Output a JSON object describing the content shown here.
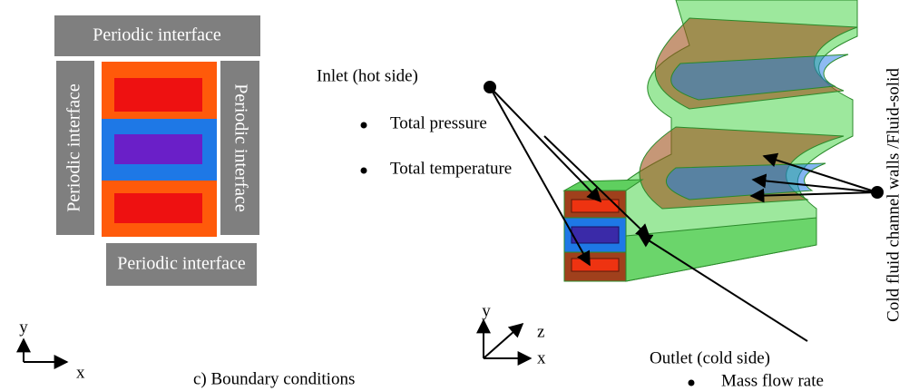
{
  "left_panel": {
    "interfaces": [
      "Periodic interface",
      "Periodic interface",
      "Periodic interface",
      "Periodic interface"
    ],
    "axes": [
      "y",
      "x"
    ]
  },
  "caption": "c) Boundary conditions",
  "inlet": {
    "title": "Inlet (hot side)",
    "items": [
      "Total pressure",
      "Total temperature"
    ]
  },
  "outlet": {
    "title": "Outlet (cold side)",
    "items": [
      "Mass flow rate"
    ]
  },
  "walls_label": "Cold fluid channel walls /Fluid-solid",
  "right_axes": [
    "y",
    "z",
    "x"
  ]
}
